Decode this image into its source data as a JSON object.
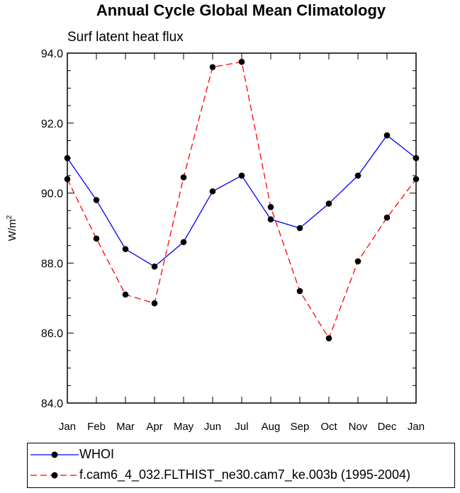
{
  "chart_data": {
    "type": "line",
    "title": "Annual Cycle Global Mean Climatology",
    "subtitle": "Surf latent heat flux",
    "ylabel": "W/m",
    "ylabel_sup": "2",
    "xlabel": "",
    "categories": [
      "Jan",
      "Feb",
      "Mar",
      "Apr",
      "May",
      "Jun",
      "Jul",
      "Aug",
      "Sep",
      "Oct",
      "Nov",
      "Dec",
      "Jan"
    ],
    "ylim": [
      84.0,
      94.0
    ],
    "yticks": [
      84.0,
      86.0,
      88.0,
      90.0,
      92.0,
      94.0
    ],
    "ytick_labels": [
      "84.0",
      "86.0",
      "88.0",
      "90.0",
      "92.0",
      "94.0"
    ],
    "series": [
      {
        "name": "WHOI",
        "color": "#0000ff",
        "dash": "solid",
        "values": [
          91.0,
          89.8,
          88.4,
          87.9,
          88.6,
          90.05,
          90.5,
          89.25,
          89.0,
          89.7,
          90.5,
          91.65,
          91.0
        ]
      },
      {
        "name": "f.cam6_4_032.FLTHIST_ne30.cam7_ke.003b (1995-2004)",
        "color": "#ff0000",
        "dash": "dashed",
        "values": [
          90.4,
          88.7,
          87.1,
          86.85,
          90.45,
          93.6,
          93.75,
          89.6,
          87.2,
          85.85,
          88.05,
          89.3,
          90.4
        ]
      }
    ],
    "legend_position": "bottom",
    "grid": false
  }
}
